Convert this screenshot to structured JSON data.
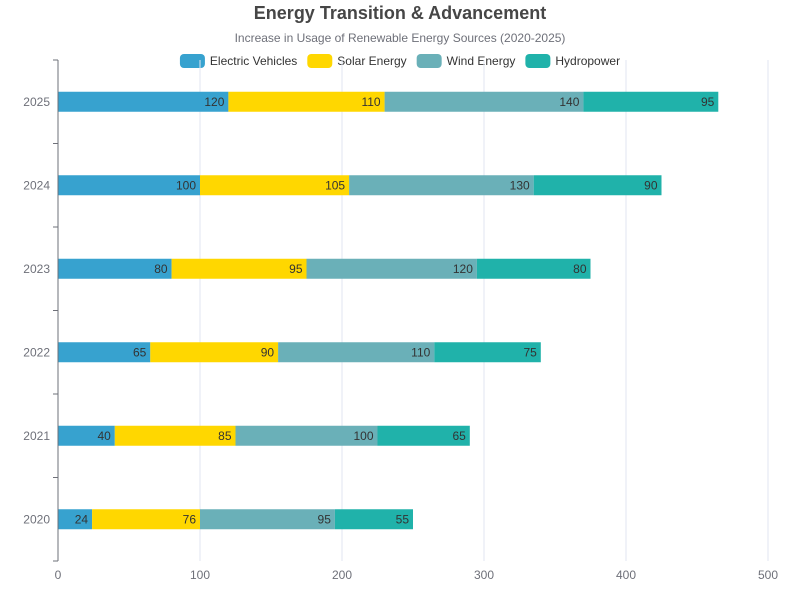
{
  "chart_data": {
    "type": "bar",
    "orientation": "horizontal",
    "stacked": true,
    "title": "Energy Transition & Advancement",
    "subtitle": "Increase in Usage of Renewable Energy Sources (2020-2025)",
    "categories": [
      "2020",
      "2021",
      "2022",
      "2023",
      "2024",
      "2025"
    ],
    "series": [
      {
        "name": "Electric Vehicles",
        "color": "#37a2cf",
        "values": [
          24,
          40,
          65,
          80,
          100,
          120
        ]
      },
      {
        "name": "Solar Energy",
        "color": "#ffd700",
        "values": [
          76,
          85,
          90,
          95,
          105,
          110
        ]
      },
      {
        "name": "Wind Energy",
        "color": "#6ab0b8",
        "values": [
          95,
          100,
          110,
          120,
          130,
          140
        ]
      },
      {
        "name": "Hydropower",
        "color": "#20b2aa",
        "values": [
          55,
          65,
          75,
          80,
          90,
          95
        ]
      }
    ],
    "xlim": [
      0,
      500
    ],
    "xticks": [
      0,
      100,
      200,
      300,
      400,
      500
    ],
    "grid": "vertical",
    "legend_position": "top-center"
  }
}
